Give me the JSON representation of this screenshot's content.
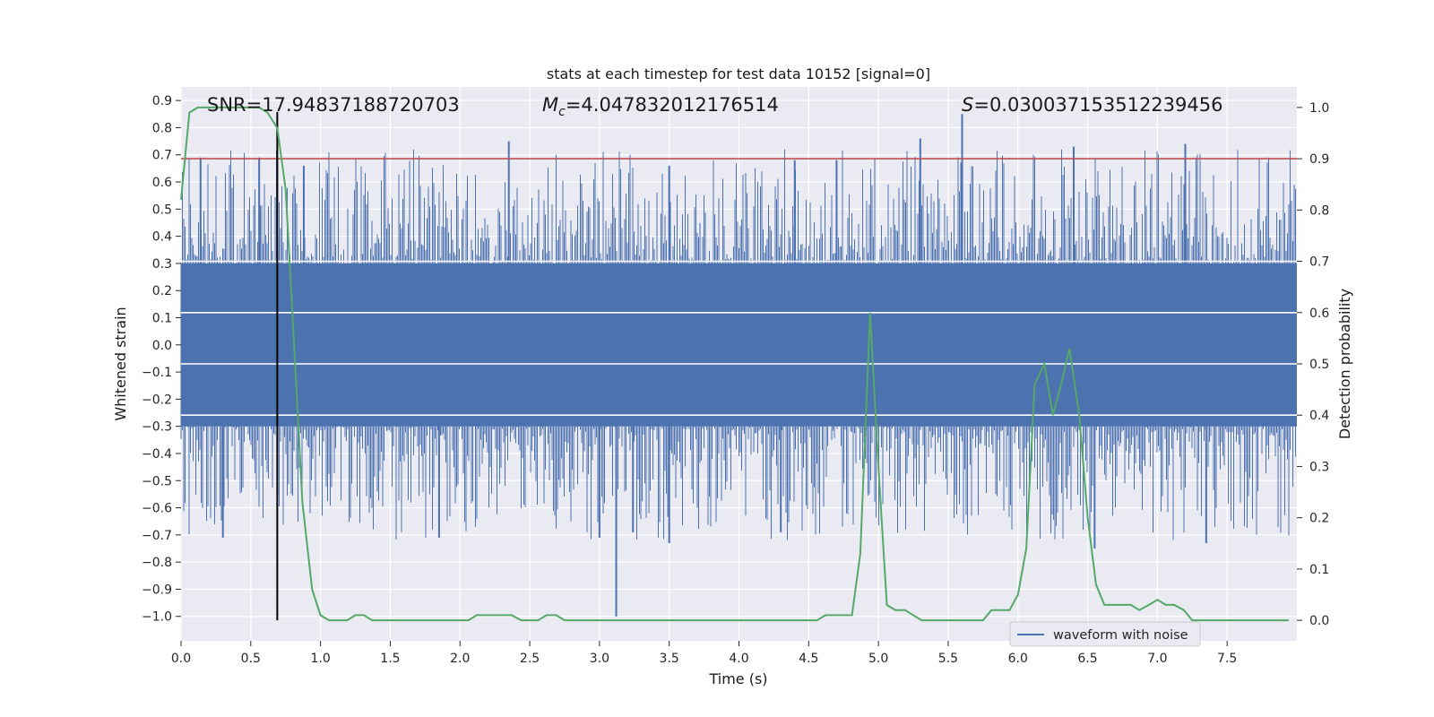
{
  "chart_data": {
    "type": "line",
    "title": "stats at each timestep for test data 10152 [signal=0]",
    "xlabel": "Time (s)",
    "ylabel": "Whitened strain",
    "y2label": "Detection probability",
    "xlim": [
      0.0,
      8.0
    ],
    "ylim": [
      -1.09,
      0.95
    ],
    "y2lim": [
      -0.04,
      1.04
    ],
    "xticks": [
      "0.0",
      "0.5",
      "1.0",
      "1.5",
      "2.0",
      "2.5",
      "3.0",
      "3.5",
      "4.0",
      "4.5",
      "5.0",
      "5.5",
      "6.0",
      "6.5",
      "7.0",
      "7.5"
    ],
    "yticks": [
      "0.9",
      "0.8",
      "0.7",
      "0.6",
      "0.5",
      "0.4",
      "0.3",
      "0.2",
      "0.1",
      "0.0",
      "−0.1",
      "−0.2",
      "−0.3",
      "−0.4",
      "−0.5",
      "−0.6",
      "−0.7",
      "−0.8",
      "−0.9",
      "−1.0"
    ],
    "y2ticks": [
      "1.0",
      "0.9",
      "0.8",
      "0.7",
      "0.6",
      "0.5",
      "0.4",
      "0.3",
      "0.2",
      "0.1",
      "0.0"
    ],
    "grid": true,
    "legend": {
      "position": "bottom-right",
      "entries": [
        "waveform with noise"
      ]
    },
    "annotations": {
      "snr": "SNR=17.94837188720703",
      "mc_symbol": "M",
      "mc_subscript": "c",
      "mc_value": "=4.047832012176514",
      "s_symbol": "S",
      "s_value": "=0.030037153512239456"
    },
    "threshold": {
      "axis": "y2",
      "value": 0.9
    },
    "marker_time": 0.69,
    "series": [
      {
        "name": "waveform with noise",
        "axis": "y",
        "kind": "noise",
        "amplitude_core": 0.3,
        "spike_max": 0.85,
        "spike_min": -1.0,
        "peaks": [
          {
            "x": 0.14,
            "y": 0.69
          },
          {
            "x": 0.56,
            "y": 0.69
          },
          {
            "x": 0.88,
            "y": 0.66
          },
          {
            "x": 2.35,
            "y": 0.75
          },
          {
            "x": 3.5,
            "y": 0.66
          },
          {
            "x": 4.4,
            "y": 0.68
          },
          {
            "x": 4.7,
            "y": 0.68
          },
          {
            "x": 5.3,
            "y": 0.76
          },
          {
            "x": 5.6,
            "y": 0.85
          },
          {
            "x": 6.4,
            "y": 0.73
          },
          {
            "x": 7.2,
            "y": 0.74
          }
        ],
        "troughs": [
          {
            "x": 0.3,
            "y": -0.71
          },
          {
            "x": 1.85,
            "y": -0.71
          },
          {
            "x": 3.0,
            "y": -0.71
          },
          {
            "x": 3.12,
            "y": -1.0
          },
          {
            "x": 3.24,
            "y": -0.69
          },
          {
            "x": 3.5,
            "y": -0.73
          },
          {
            "x": 4.3,
            "y": -0.69
          },
          {
            "x": 6.55,
            "y": -0.75
          },
          {
            "x": 7.35,
            "y": -0.73
          }
        ]
      },
      {
        "name": "detection probability",
        "axis": "y2",
        "kind": "line",
        "x": [
          0.0,
          0.06,
          0.12,
          0.18,
          0.25,
          0.31,
          0.37,
          0.44,
          0.5,
          0.56,
          0.62,
          0.69,
          0.75,
          0.81,
          0.87,
          0.94,
          1.0,
          1.06,
          1.12,
          1.19,
          1.25,
          1.31,
          1.37,
          1.44,
          1.5,
          1.56,
          1.62,
          1.69,
          1.75,
          1.81,
          1.87,
          1.94,
          2.0,
          2.06,
          2.12,
          2.19,
          2.25,
          2.31,
          2.37,
          2.44,
          2.5,
          2.56,
          2.62,
          2.69,
          2.75,
          2.81,
          2.87,
          2.94,
          3.0,
          3.5,
          4.0,
          4.3,
          4.5,
          4.56,
          4.62,
          4.69,
          4.75,
          4.81,
          4.87,
          4.94,
          5.0,
          5.06,
          5.12,
          5.19,
          5.25,
          5.31,
          5.37,
          5.44,
          5.5,
          5.56,
          5.62,
          5.69,
          5.75,
          5.81,
          5.87,
          5.94,
          6.0,
          6.06,
          6.12,
          6.19,
          6.25,
          6.31,
          6.37,
          6.44,
          6.5,
          6.56,
          6.62,
          6.69,
          6.75,
          6.81,
          6.87,
          6.94,
          7.0,
          7.06,
          7.12,
          7.19,
          7.25,
          7.31,
          7.37,
          7.5,
          7.62,
          7.69,
          7.75,
          7.81,
          7.87,
          7.94
        ],
        "y": [
          0.82,
          0.99,
          1.0,
          1.0,
          1.0,
          1.0,
          1.0,
          1.0,
          1.0,
          1.0,
          0.99,
          0.96,
          0.84,
          0.54,
          0.23,
          0.06,
          0.01,
          0.0,
          0.0,
          0.0,
          0.01,
          0.01,
          0.0,
          0.0,
          0.0,
          0.0,
          0.0,
          0.0,
          0.0,
          0.0,
          0.0,
          0.0,
          0.0,
          0.0,
          0.01,
          0.01,
          0.01,
          0.01,
          0.01,
          0.0,
          0.0,
          0.0,
          0.01,
          0.01,
          0.0,
          0.0,
          0.0,
          0.0,
          0.0,
          0.0,
          0.0,
          0.0,
          0.0,
          0.0,
          0.01,
          0.01,
          0.01,
          0.01,
          0.13,
          0.6,
          0.3,
          0.03,
          0.02,
          0.02,
          0.01,
          0.0,
          0.0,
          0.0,
          0.0,
          0.0,
          0.0,
          0.0,
          0.0,
          0.02,
          0.02,
          0.02,
          0.05,
          0.14,
          0.46,
          0.5,
          0.4,
          0.46,
          0.53,
          0.4,
          0.2,
          0.07,
          0.03,
          0.03,
          0.03,
          0.03,
          0.02,
          0.03,
          0.04,
          0.03,
          0.03,
          0.02,
          0.0,
          0.0,
          0.0,
          0.0,
          0.0,
          0.0,
          0.0,
          0.0,
          0.0,
          0.0
        ]
      }
    ]
  }
}
